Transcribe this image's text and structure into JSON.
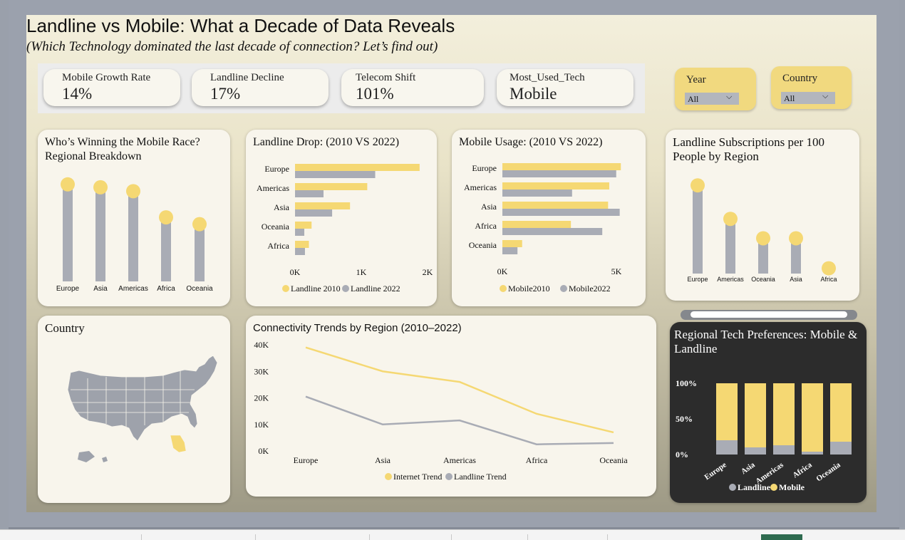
{
  "header": {
    "title": "Landline vs Mobile: What a Decade of Data Reveals",
    "subtitle": "(Which Technology dominated the last decade of connection? Let’s find out)"
  },
  "kpis": [
    {
      "label": "Mobile Growth Rate",
      "value": "14%"
    },
    {
      "label": "Landline Decline",
      "value": "17%"
    },
    {
      "label": "Telecom Shift",
      "value": "101%"
    },
    {
      "label": "Most_Used_Tech",
      "value": "Mobile"
    }
  ],
  "slicers": [
    {
      "label": "Year",
      "value": "All"
    },
    {
      "label": "Country",
      "value": "All"
    }
  ],
  "colors": {
    "yellow": "#f5d873",
    "gray": "#a9acb5"
  },
  "map": {
    "title": "Country",
    "highlight_icon": "us-state-map-icon"
  },
  "chart_data": [
    {
      "id": "mobile_race",
      "type": "bar",
      "title": "Who’s Winning the Mobile Race? Regional Breakdown",
      "categories": [
        "Europe",
        "Asia",
        "Americas",
        "Africa",
        "Oceania"
      ],
      "values": [
        100,
        97,
        93,
        66,
        59
      ],
      "xlabel": "",
      "ylabel": "",
      "ylim": [
        0,
        105
      ],
      "grid": false
    },
    {
      "id": "landline_drop",
      "type": "bar",
      "title": "Landline Drop: (2010 VS 2022)",
      "categories": [
        "Europe",
        "Americas",
        "Asia",
        "Oceania",
        "Africa"
      ],
      "series": [
        {
          "name": "Landline 2010",
          "values": [
            1880,
            1090,
            830,
            250,
            210
          ]
        },
        {
          "name": "Landline 2022",
          "values": [
            1210,
            430,
            560,
            140,
            150
          ]
        }
      ],
      "xticks": [
        "0K",
        "1K",
        "2K"
      ],
      "xlim": [
        0,
        2000
      ],
      "legend": "bottom",
      "grid": false
    },
    {
      "id": "mobile_usage",
      "type": "bar",
      "title": "Mobile Usage: (2010 VS 2022)",
      "categories": [
        "Europe",
        "Americas",
        "Asia",
        "Africa",
        "Oceania"
      ],
      "series": [
        {
          "name": "Mobile2010",
          "values": [
            5100,
            4600,
            4550,
            2950,
            850
          ]
        },
        {
          "name": "Mobile2022",
          "values": [
            4900,
            3000,
            5050,
            4300,
            650
          ]
        }
      ],
      "xticks": [
        "0K",
        "5K"
      ],
      "xlim": [
        0,
        5000
      ],
      "legend": "bottom",
      "grid": false
    },
    {
      "id": "landline_subs",
      "type": "bar",
      "title": "Landline Subscriptions per 100 People by Region",
      "categories": [
        "Europe",
        "Americas",
        "Oceania",
        "Asia",
        "Africa"
      ],
      "values": [
        100,
        62,
        40,
        40,
        6
      ],
      "ylim": [
        0,
        105
      ],
      "grid": false
    },
    {
      "id": "connectivity_trends",
      "type": "line",
      "title": "Connectivity Trends by Region (2010–2022)",
      "categories": [
        "Europe",
        "Asia",
        "Americas",
        "Africa",
        "Oceania"
      ],
      "series": [
        {
          "name": "Internet Trend",
          "values": [
            39000,
            30000,
            26000,
            14000,
            7000
          ]
        },
        {
          "name": "Landline Trend",
          "values": [
            20500,
            10000,
            11500,
            2500,
            3000
          ]
        }
      ],
      "yticks": [
        "0K",
        "10K",
        "20K",
        "30K",
        "40K"
      ],
      "ylim": [
        0,
        40000
      ],
      "legend": "bottom",
      "grid": false
    },
    {
      "id": "tech_preferences",
      "type": "bar",
      "title": "Regional Tech Preferences: Mobile & Landline",
      "categories": [
        "Europe",
        "Asia",
        "Americas",
        "Africa",
        "Oceania"
      ],
      "series": [
        {
          "name": "Landline",
          "values": [
            20,
            10,
            13,
            4,
            18
          ]
        },
        {
          "name": "Mobile",
          "values": [
            80,
            90,
            87,
            96,
            82
          ]
        }
      ],
      "yticks": [
        "0%",
        "50%",
        "100%"
      ],
      "ylim": [
        0,
        100
      ],
      "stacked": true,
      "legend": "bottom",
      "grid": false
    }
  ]
}
